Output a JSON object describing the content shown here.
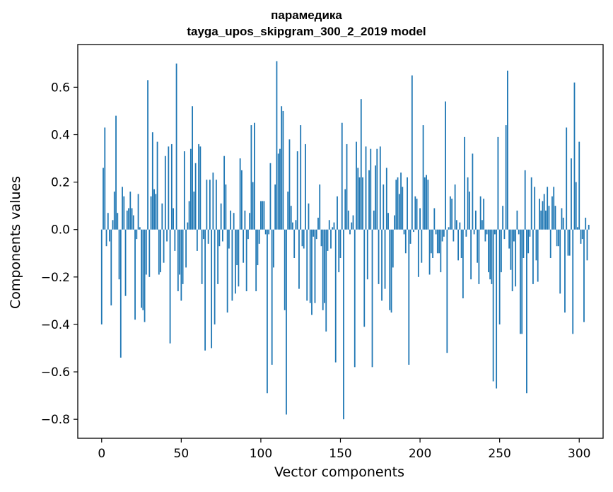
{
  "chart_data": {
    "type": "bar",
    "title": "парамедика",
    "subtitle": "tayga_upos_skipgram_300_2_2019 model",
    "xlabel": "Vector components",
    "ylabel": "Components values",
    "xlim": [
      -15,
      315
    ],
    "ylim": [
      -0.88,
      0.78
    ],
    "xticks": [
      0,
      50,
      100,
      150,
      200,
      250,
      300
    ],
    "yticks": [
      -0.8,
      -0.6,
      -0.4,
      -0.2,
      0.0,
      0.2,
      0.4,
      0.6
    ],
    "ytick_labels": [
      "−0.8",
      "−0.6",
      "−0.4",
      "−0.2",
      "0.0",
      "0.2",
      "0.4",
      "0.6"
    ],
    "grid": false,
    "bar_color": "#1f77b4",
    "values": [
      -0.4,
      0.26,
      0.43,
      -0.07,
      0.07,
      -0.05,
      -0.32,
      0.04,
      0.16,
      0.48,
      0.07,
      -0.21,
      -0.54,
      0.18,
      0.14,
      -0.28,
      0.08,
      0.09,
      0.16,
      0.09,
      0.06,
      -0.38,
      -0.04,
      0.15,
      0.01,
      -0.33,
      -0.34,
      -0.39,
      -0.19,
      0.63,
      -0.2,
      0.14,
      0.41,
      0.17,
      0.15,
      0.37,
      -0.19,
      -0.18,
      0.11,
      -0.14,
      0.31,
      -0.05,
      0.35,
      -0.48,
      0.36,
      0.09,
      -0.09,
      0.7,
      -0.26,
      -0.19,
      -0.3,
      -0.23,
      0.33,
      -0.16,
      0.03,
      0.12,
      0.34,
      0.52,
      0.16,
      0.28,
      -0.09,
      0.36,
      0.35,
      -0.23,
      -0.04,
      -0.51,
      0.21,
      -0.06,
      0.21,
      -0.5,
      0.24,
      -0.4,
      0.21,
      -0.23,
      -0.07,
      0.11,
      -0.05,
      0.31,
      0.19,
      -0.35,
      -0.08,
      0.08,
      -0.3,
      0.07,
      -0.27,
      -0.15,
      -0.24,
      0.3,
      0.25,
      -0.14,
      0.08,
      -0.26,
      -0.04,
      0.07,
      0.44,
      0.2,
      0.45,
      -0.26,
      -0.15,
      -0.06,
      0.12,
      0.12,
      0.12,
      -0.02,
      -0.69,
      -0.02,
      0.28,
      -0.57,
      -0.16,
      0.19,
      0.71,
      0.32,
      0.34,
      0.52,
      0.5,
      -0.34,
      -0.78,
      0.16,
      0.38,
      0.1,
      0.03,
      -0.12,
      0.04,
      0.33,
      -0.25,
      0.44,
      -0.07,
      -0.08,
      0.36,
      -0.3,
      0.11,
      -0.31,
      -0.36,
      -0.03,
      -0.31,
      -0.04,
      0.05,
      0.19,
      -0.07,
      -0.34,
      -0.31,
      -0.43,
      -0.09,
      0.04,
      -0.08,
      0.01,
      0.03,
      -0.56,
      0.14,
      -0.18,
      -0.12,
      0.45,
      -0.8,
      0.17,
      0.36,
      0.08,
      -0.02,
      0.03,
      0.06,
      -0.58,
      0.37,
      0.26,
      0.22,
      0.55,
      0.22,
      -0.41,
      0.35,
      -0.21,
      0.25,
      0.34,
      -0.58,
      0.08,
      0.27,
      0.34,
      -0.23,
      0.35,
      -0.3,
      0.19,
      -0.25,
      0.26,
      0.07,
      -0.34,
      -0.35,
      -0.16,
      0.06,
      0.21,
      0.22,
      0.15,
      0.24,
      0.18,
      -0.02,
      -0.1,
      0.22,
      -0.57,
      -0.06,
      0.65,
      -0.01,
      0.14,
      0.13,
      -0.2,
      0.09,
      -0.14,
      0.44,
      0.22,
      0.23,
      0.21,
      -0.19,
      -0.1,
      -0.12,
      0.09,
      -0.02,
      -0.1,
      -0.1,
      -0.18,
      -0.05,
      -0.03,
      0.54,
      -0.52,
      0.01,
      0.14,
      0.13,
      -0.05,
      0.19,
      0.04,
      -0.13,
      0.03,
      -0.12,
      -0.29,
      0.39,
      -0.03,
      0.22,
      0.16,
      -0.21,
      0.32,
      -0.02,
      0.08,
      -0.14,
      -0.23,
      0.14,
      0.04,
      0.13,
      -0.05,
      -0.02,
      -0.18,
      -0.21,
      -0.23,
      -0.64,
      -0.02,
      -0.67,
      0.39,
      -0.4,
      -0.18,
      0.1,
      -0.04,
      0.44,
      0.67,
      -0.08,
      -0.17,
      -0.26,
      -0.05,
      -0.24,
      0.08,
      -0.02,
      -0.44,
      -0.44,
      -0.12,
      0.25,
      -0.69,
      -0.1,
      -0.03,
      0.22,
      -0.23,
      0.18,
      -0.13,
      -0.22,
      0.13,
      0.08,
      0.12,
      0.15,
      0.08,
      0.18,
      0.1,
      -0.12,
      0.14,
      0.18,
      0.1,
      -0.07,
      -0.07,
      -0.27,
      0.09,
      0.05,
      -0.35,
      0.43,
      -0.11,
      -0.11,
      0.3,
      -0.44,
      0.62,
      0.2,
      0.01,
      0.37,
      -0.06,
      -0.04,
      -0.39,
      0.05,
      -0.13,
      0.02
    ]
  }
}
